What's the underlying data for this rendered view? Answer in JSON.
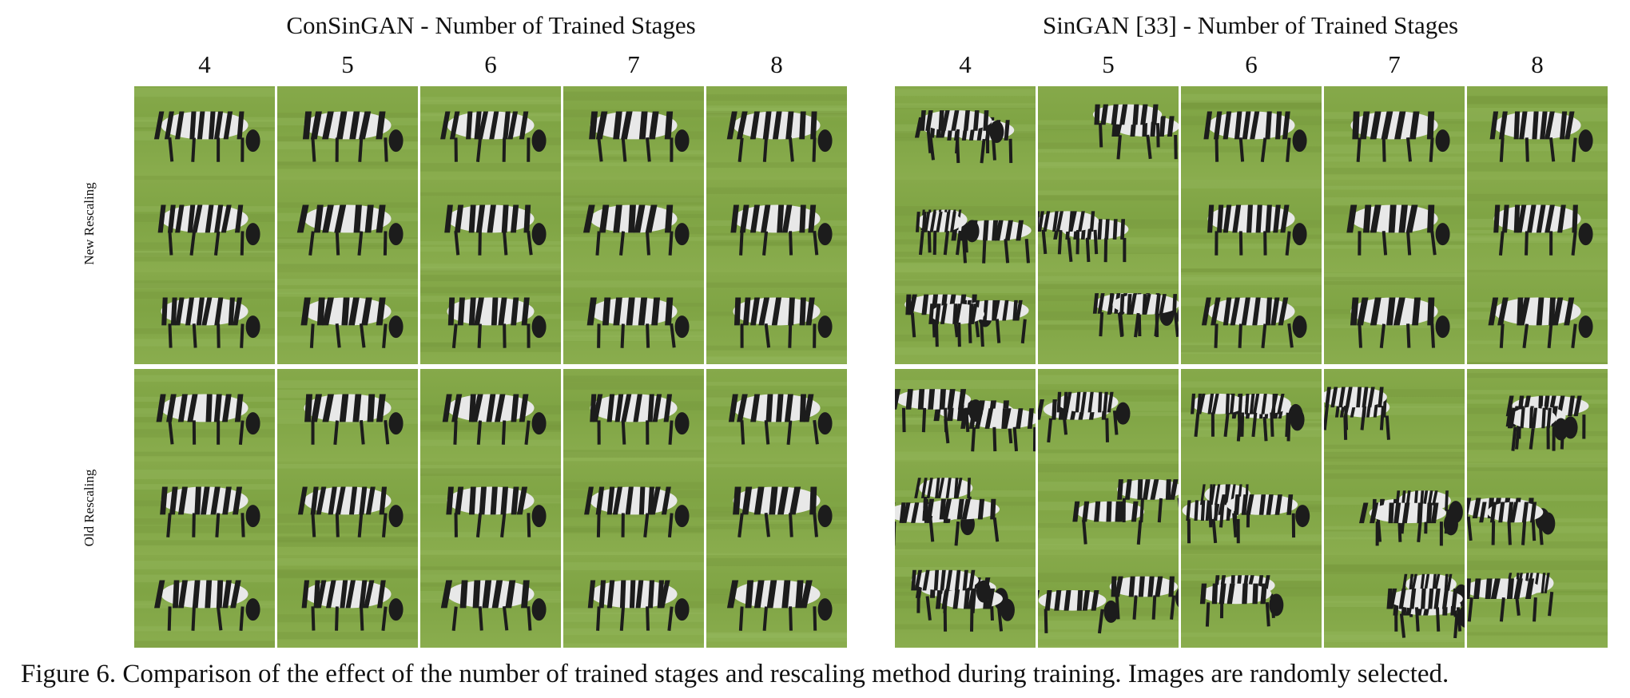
{
  "panels": [
    {
      "title": "ConSinGAN - Number of Trained Stages",
      "columns": [
        "4",
        "5",
        "6",
        "7",
        "8"
      ]
    },
    {
      "title": "SinGAN [33] - Number of Trained Stages",
      "columns": [
        "4",
        "5",
        "6",
        "7",
        "8"
      ]
    }
  ],
  "row_labels": [
    "New Rescaling",
    "Old Rescaling"
  ],
  "rows_per_group": 3,
  "colors": {
    "grass": "#86a94a",
    "stripe_dark": "#1c1c1c",
    "stripe_light": "#e8e8e8",
    "divider": "#ffffff"
  },
  "caption": "Figure 6. Comparison of the effect of the number of trained stages and rescaling method during training. Images are randomly selected."
}
